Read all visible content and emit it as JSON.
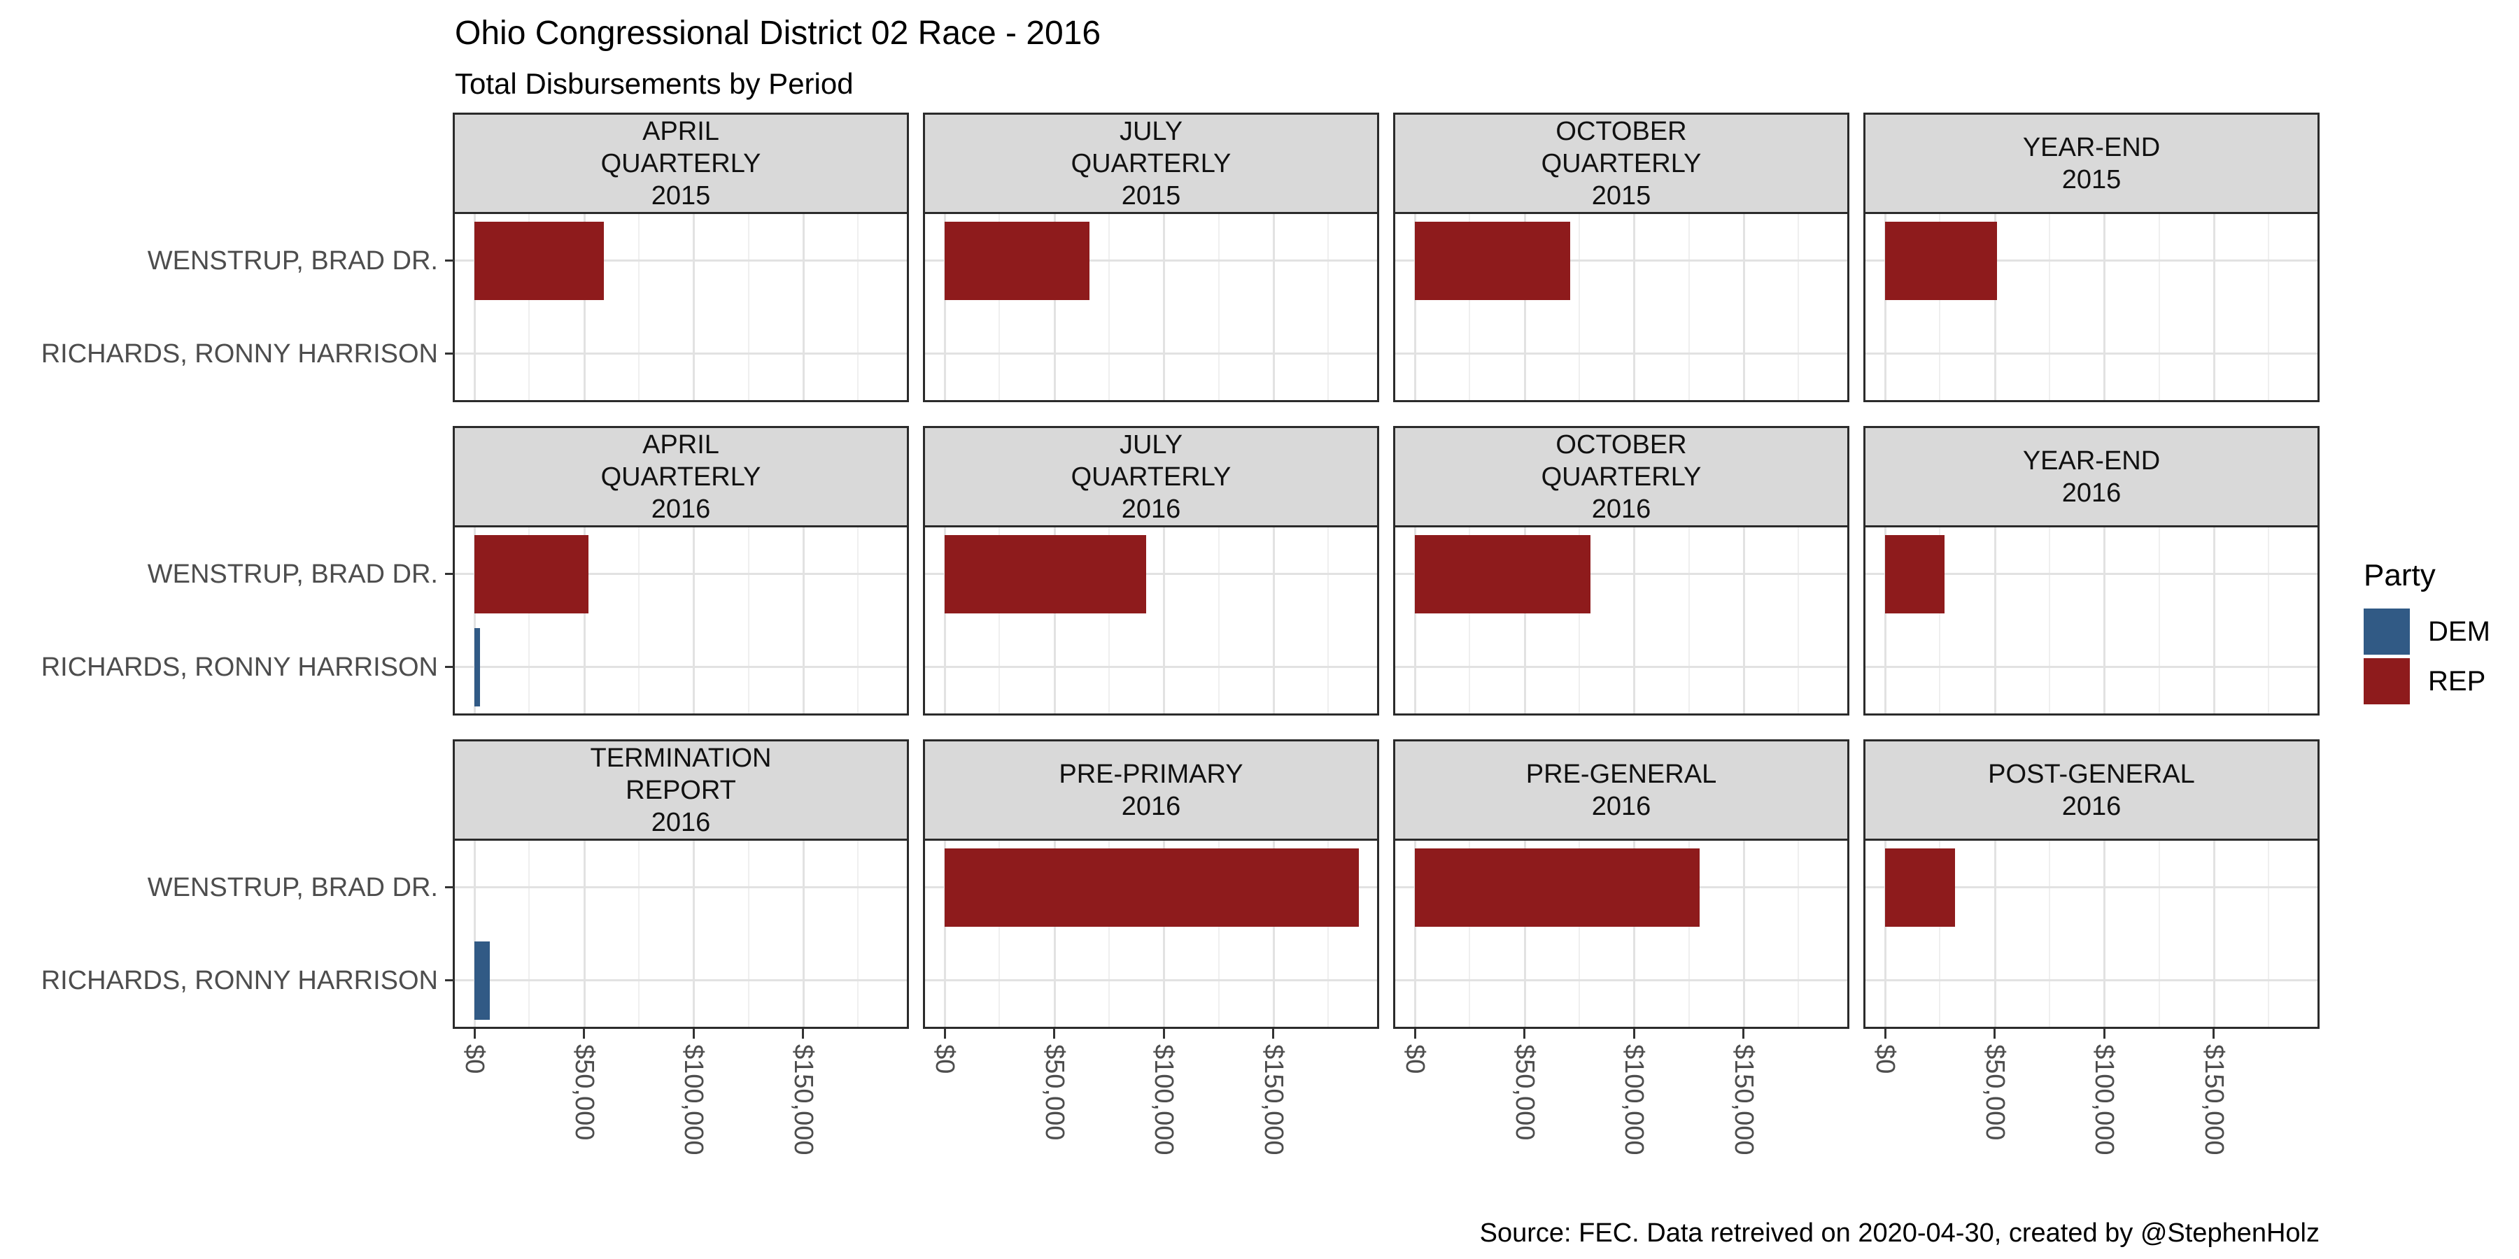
{
  "title": "Ohio Congressional District 02 Race - 2016",
  "subtitle": "Total Disbursements by Period",
  "caption": "Source: FEC. Data retreived on 2020-04-30, created by @StephenHolz",
  "legend": {
    "title": "Party",
    "items": [
      {
        "label": "DEM",
        "color": "#315A85"
      },
      {
        "label": "REP",
        "color": "#8E1B1C"
      }
    ]
  },
  "y_axis": {
    "categories": [
      "WENSTRUP, BRAD DR.",
      "RICHARDS, RONNY HARRISON"
    ]
  },
  "x_axis": {
    "tick_labels": [
      "$0",
      "$50,000",
      "$100,000",
      "$150,000"
    ],
    "tick_values": [
      0,
      50000,
      100000,
      150000
    ]
  },
  "chart_data": {
    "type": "bar",
    "orientation": "horizontal",
    "unit": "USD",
    "title": "Ohio Congressional District 02 Race - 2016",
    "subtitle": "Total Disbursements by Period",
    "categories": [
      "WENSTRUP, BRAD DR.",
      "RICHARDS, RONNY HARRISON"
    ],
    "candidate_party": {
      "WENSTRUP, BRAD DR.": "REP",
      "RICHARDS, RONNY HARRISON": "DEM"
    },
    "series_colors": {
      "DEM": "#315A85",
      "REP": "#8E1B1C"
    },
    "xlim": [
      -9000,
      197000
    ],
    "grid_minor_values": [
      25000,
      75000,
      125000,
      175000
    ],
    "legend_position": "right",
    "facets": [
      {
        "strip_lines": [
          "APRIL",
          "QUARTERLY",
          "2015"
        ],
        "values": [
          59000,
          0
        ]
      },
      {
        "strip_lines": [
          "JULY",
          "QUARTERLY",
          "2015"
        ],
        "values": [
          66000,
          0
        ]
      },
      {
        "strip_lines": [
          "OCTOBER",
          "QUARTERLY",
          "2015"
        ],
        "values": [
          71000,
          0
        ]
      },
      {
        "strip_lines": [
          "YEAR-END",
          "2015"
        ],
        "values": [
          51000,
          0
        ]
      },
      {
        "strip_lines": [
          "APRIL",
          "QUARTERLY",
          "2016"
        ],
        "values": [
          52000,
          2500
        ]
      },
      {
        "strip_lines": [
          "JULY",
          "QUARTERLY",
          "2016"
        ],
        "values": [
          92000,
          0
        ]
      },
      {
        "strip_lines": [
          "OCTOBER",
          "QUARTERLY",
          "2016"
        ],
        "values": [
          80000,
          0
        ]
      },
      {
        "strip_lines": [
          "YEAR-END",
          "2016"
        ],
        "values": [
          27000,
          0
        ]
      },
      {
        "strip_lines": [
          "TERMINATION",
          "REPORT",
          "2016"
        ],
        "values": [
          0,
          7000
        ]
      },
      {
        "strip_lines": [
          "PRE-PRIMARY",
          "2016"
        ],
        "values": [
          189000,
          0
        ]
      },
      {
        "strip_lines": [
          "PRE-GENERAL",
          "2016"
        ],
        "values": [
          130000,
          0
        ]
      },
      {
        "strip_lines": [
          "POST-GENERAL",
          "2016"
        ],
        "values": [
          32000,
          0
        ]
      }
    ]
  }
}
